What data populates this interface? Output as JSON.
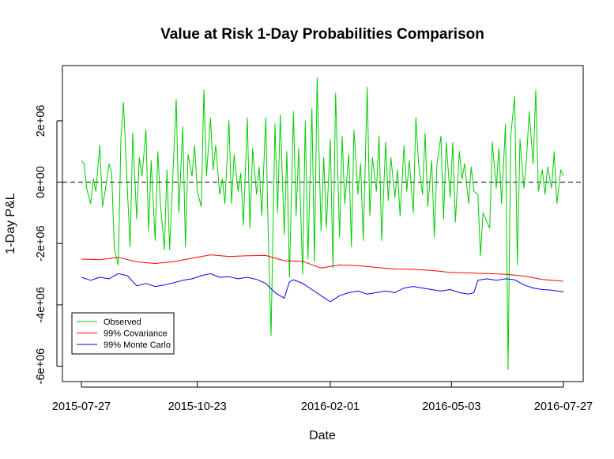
{
  "chart_data": {
    "type": "line",
    "title": "Value at Risk 1-Day Probabilities Comparison",
    "xlabel": "Date",
    "ylabel": "1-Day P&L",
    "xlim": [
      "2015-07-27",
      "2016-07-27"
    ],
    "ylim": [
      -6500000,
      3800000
    ],
    "x_ticks": [
      {
        "value": "2015-07-27",
        "label": "2015-07-27"
      },
      {
        "value": "2015-10-23",
        "label": "2015-10-23"
      },
      {
        "value": "2016-02-01",
        "label": "2016-02-01"
      },
      {
        "value": "2016-05-03",
        "label": "2016-05-03"
      },
      {
        "value": "2016-07-27",
        "label": "2016-07-27"
      }
    ],
    "y_ticks": [
      {
        "value": -6000000,
        "label": "-6e+06"
      },
      {
        "value": -4000000,
        "label": "-4e+06"
      },
      {
        "value": -2000000,
        "label": "-2e+06"
      },
      {
        "value": 0,
        "label": "0e+00"
      },
      {
        "value": 2000000,
        "label": "2e+06"
      }
    ],
    "reference_line": {
      "y": 0,
      "style": "dashed"
    },
    "legend": {
      "position": "bottom-left"
    },
    "grid": false,
    "series": [
      {
        "name": "Observed",
        "color": "#00CD00",
        "points": [
          [
            "2015-07-27",
            700000
          ],
          [
            "2015-07-29",
            600000
          ],
          [
            "2015-07-31",
            -200000
          ],
          [
            "2015-08-03",
            -700000
          ],
          [
            "2015-08-05",
            100000
          ],
          [
            "2015-08-07",
            -300000
          ],
          [
            "2015-08-10",
            1200000
          ],
          [
            "2015-08-12",
            -800000
          ],
          [
            "2015-08-14",
            -300000
          ],
          [
            "2015-08-17",
            600000
          ],
          [
            "2015-08-19",
            300000
          ],
          [
            "2015-08-21",
            -2200000
          ],
          [
            "2015-08-24",
            -2700000
          ],
          [
            "2015-08-26",
            1400000
          ],
          [
            "2015-08-28",
            2600000
          ],
          [
            "2015-08-31",
            -300000
          ],
          [
            "2015-09-02",
            -2100000
          ],
          [
            "2015-09-04",
            1600000
          ],
          [
            "2015-09-07",
            -1200000
          ],
          [
            "2015-09-09",
            800000
          ],
          [
            "2015-09-11",
            200000
          ],
          [
            "2015-09-14",
            1700000
          ],
          [
            "2015-09-16",
            -1600000
          ],
          [
            "2015-09-18",
            700000
          ],
          [
            "2015-09-21",
            -1900000
          ],
          [
            "2015-09-23",
            1000000
          ],
          [
            "2015-09-25",
            -700000
          ],
          [
            "2015-09-28",
            -2200000
          ],
          [
            "2015-09-30",
            400000
          ],
          [
            "2015-10-02",
            -2200000
          ],
          [
            "2015-10-05",
            800000
          ],
          [
            "2015-10-07",
            2700000
          ],
          [
            "2015-10-09",
            -1000000
          ],
          [
            "2015-10-12",
            1800000
          ],
          [
            "2015-10-14",
            -2100000
          ],
          [
            "2015-10-16",
            900000
          ],
          [
            "2015-10-19",
            200000
          ],
          [
            "2015-10-21",
            1200000
          ],
          [
            "2015-10-23",
            -300000
          ],
          [
            "2015-10-26",
            -800000
          ],
          [
            "2015-10-28",
            3000000
          ],
          [
            "2015-10-30",
            200000
          ],
          [
            "2015-11-02",
            2100000
          ],
          [
            "2015-11-04",
            400000
          ],
          [
            "2015-11-06",
            1200000
          ],
          [
            "2015-11-09",
            -400000
          ],
          [
            "2015-11-11",
            100000
          ],
          [
            "2015-11-13",
            -700000
          ],
          [
            "2015-11-16",
            2000000
          ],
          [
            "2015-11-18",
            -700000
          ],
          [
            "2015-11-20",
            900000
          ],
          [
            "2015-11-23",
            -300000
          ],
          [
            "2015-11-25",
            300000
          ],
          [
            "2015-11-27",
            -1400000
          ],
          [
            "2015-11-30",
            2100000
          ],
          [
            "2015-12-02",
            -1500000
          ],
          [
            "2015-12-04",
            1100000
          ],
          [
            "2015-12-07",
            -400000
          ],
          [
            "2015-12-09",
            500000
          ],
          [
            "2015-12-11",
            -1100000
          ],
          [
            "2015-12-14",
            2100000
          ],
          [
            "2015-12-16",
            -2000000
          ],
          [
            "2015-12-18",
            -5000000
          ],
          [
            "2015-12-21",
            1900000
          ],
          [
            "2015-12-23",
            -1000000
          ],
          [
            "2015-12-25",
            2200000
          ],
          [
            "2015-12-28",
            -1700000
          ],
          [
            "2015-12-30",
            1000000
          ],
          [
            "2016-01-01",
            -3100000
          ],
          [
            "2016-01-04",
            2300000
          ],
          [
            "2016-01-06",
            -1100000
          ],
          [
            "2016-01-08",
            1100000
          ],
          [
            "2016-01-11",
            -3000000
          ],
          [
            "2016-01-13",
            2000000
          ],
          [
            "2016-01-15",
            -2500000
          ],
          [
            "2016-01-18",
            2400000
          ],
          [
            "2016-01-20",
            -2600000
          ],
          [
            "2016-01-22",
            3400000
          ],
          [
            "2016-01-25",
            -1600000
          ],
          [
            "2016-01-27",
            800000
          ],
          [
            "2016-01-29",
            -1500000
          ],
          [
            "2016-02-01",
            1400000
          ],
          [
            "2016-02-03",
            -2800000
          ],
          [
            "2016-02-05",
            2900000
          ],
          [
            "2016-02-08",
            -1800000
          ],
          [
            "2016-02-10",
            1500000
          ],
          [
            "2016-02-12",
            -700000
          ],
          [
            "2016-02-15",
            900000
          ],
          [
            "2016-02-17",
            -2100000
          ],
          [
            "2016-02-19",
            1700000
          ],
          [
            "2016-02-22",
            -400000
          ],
          [
            "2016-02-24",
            600000
          ],
          [
            "2016-02-26",
            -1900000
          ],
          [
            "2016-02-29",
            3100000
          ],
          [
            "2016-03-02",
            -1100000
          ],
          [
            "2016-03-04",
            800000
          ],
          [
            "2016-03-07",
            -300000
          ],
          [
            "2016-03-09",
            1500000
          ],
          [
            "2016-03-11",
            -1900000
          ],
          [
            "2016-03-14",
            1300000
          ],
          [
            "2016-03-16",
            -600000
          ],
          [
            "2016-03-18",
            800000
          ],
          [
            "2016-03-21",
            -500000
          ],
          [
            "2016-03-23",
            400000
          ],
          [
            "2016-03-25",
            -1100000
          ],
          [
            "2016-03-28",
            1200000
          ],
          [
            "2016-03-30",
            -300000
          ],
          [
            "2016-04-01",
            700000
          ],
          [
            "2016-04-04",
            -1000000
          ],
          [
            "2016-04-06",
            2100000
          ],
          [
            "2016-04-08",
            600000
          ],
          [
            "2016-04-11",
            -400000
          ],
          [
            "2016-04-13",
            1600000
          ],
          [
            "2016-04-15",
            -800000
          ],
          [
            "2016-04-18",
            700000
          ],
          [
            "2016-04-20",
            -1800000
          ],
          [
            "2016-04-22",
            600000
          ],
          [
            "2016-04-25",
            1500000
          ],
          [
            "2016-04-27",
            -1200000
          ],
          [
            "2016-04-29",
            1300000
          ],
          [
            "2016-05-02",
            -500000
          ],
          [
            "2016-05-04",
            1300000
          ],
          [
            "2016-05-06",
            -1300000
          ],
          [
            "2016-05-09",
            1000000
          ],
          [
            "2016-05-11",
            100000
          ],
          [
            "2016-05-13",
            600000
          ],
          [
            "2016-05-16",
            -700000
          ],
          [
            "2016-05-18",
            500000
          ],
          [
            "2016-05-20",
            -300000
          ],
          [
            "2016-05-23",
            -400000
          ],
          [
            "2016-05-25",
            -2400000
          ],
          [
            "2016-05-27",
            -1000000
          ],
          [
            "2016-05-30",
            -1300000
          ],
          [
            "2016-06-01",
            -1500000
          ],
          [
            "2016-06-03",
            1300000
          ],
          [
            "2016-06-06",
            -200000
          ],
          [
            "2016-06-08",
            1100000
          ],
          [
            "2016-06-10",
            -700000
          ],
          [
            "2016-06-13",
            1900000
          ],
          [
            "2016-06-15",
            -6100000
          ],
          [
            "2016-06-17",
            1500000
          ],
          [
            "2016-06-20",
            2800000
          ],
          [
            "2016-06-22",
            -2700000
          ],
          [
            "2016-06-24",
            1400000
          ],
          [
            "2016-06-27",
            -200000
          ],
          [
            "2016-06-29",
            800000
          ],
          [
            "2016-07-01",
            2300000
          ],
          [
            "2016-07-04",
            600000
          ],
          [
            "2016-07-06",
            3000000
          ],
          [
            "2016-07-08",
            -300000
          ],
          [
            "2016-07-11",
            400000
          ],
          [
            "2016-07-13",
            -400000
          ],
          [
            "2016-07-15",
            500000
          ],
          [
            "2016-07-18",
            -200000
          ],
          [
            "2016-07-20",
            1000000
          ],
          [
            "2016-07-22",
            -700000
          ],
          [
            "2016-07-25",
            400000
          ],
          [
            "2016-07-27",
            200000
          ]
        ]
      },
      {
        "name": "99% Covariance",
        "color": "#FF0000",
        "points": [
          [
            "2015-07-27",
            -2510000
          ],
          [
            "2015-08-10",
            -2530000
          ],
          [
            "2015-08-24",
            -2450000
          ],
          [
            "2015-09-07",
            -2600000
          ],
          [
            "2015-09-21",
            -2650000
          ],
          [
            "2015-10-05",
            -2590000
          ],
          [
            "2015-10-19",
            -2480000
          ],
          [
            "2015-11-02",
            -2370000
          ],
          [
            "2015-11-16",
            -2420000
          ],
          [
            "2015-11-30",
            -2400000
          ],
          [
            "2015-12-14",
            -2390000
          ],
          [
            "2015-12-28",
            -2560000
          ],
          [
            "2016-01-11",
            -2580000
          ],
          [
            "2016-01-25",
            -2800000
          ],
          [
            "2016-02-08",
            -2700000
          ],
          [
            "2016-02-22",
            -2720000
          ],
          [
            "2016-03-07",
            -2780000
          ],
          [
            "2016-03-21",
            -2830000
          ],
          [
            "2016-04-04",
            -2840000
          ],
          [
            "2016-04-18",
            -2880000
          ],
          [
            "2016-05-02",
            -2940000
          ],
          [
            "2016-05-16",
            -2960000
          ],
          [
            "2016-05-30",
            -2980000
          ],
          [
            "2016-06-13",
            -3000000
          ],
          [
            "2016-06-27",
            -3060000
          ],
          [
            "2016-07-11",
            -3170000
          ],
          [
            "2016-07-27",
            -3230000
          ]
        ]
      },
      {
        "name": "99% Monte Carlo",
        "color": "#0000FF",
        "points": [
          [
            "2015-07-27",
            -3100000
          ],
          [
            "2015-08-03",
            -3200000
          ],
          [
            "2015-08-10",
            -3100000
          ],
          [
            "2015-08-17",
            -3150000
          ],
          [
            "2015-08-24",
            -2980000
          ],
          [
            "2015-08-31",
            -3050000
          ],
          [
            "2015-09-07",
            -3380000
          ],
          [
            "2015-09-14",
            -3300000
          ],
          [
            "2015-09-21",
            -3400000
          ],
          [
            "2015-09-28",
            -3350000
          ],
          [
            "2015-10-05",
            -3280000
          ],
          [
            "2015-10-12",
            -3200000
          ],
          [
            "2015-10-19",
            -3150000
          ],
          [
            "2015-10-26",
            -3050000
          ],
          [
            "2015-11-02",
            -2980000
          ],
          [
            "2015-11-09",
            -3100000
          ],
          [
            "2015-11-16",
            -3080000
          ],
          [
            "2015-11-23",
            -3150000
          ],
          [
            "2015-11-30",
            -3100000
          ],
          [
            "2015-12-07",
            -3170000
          ],
          [
            "2015-12-14",
            -3300000
          ],
          [
            "2015-12-21",
            -3600000
          ],
          [
            "2015-12-28",
            -3780000
          ],
          [
            "2016-01-01",
            -3250000
          ],
          [
            "2016-01-04",
            -3180000
          ],
          [
            "2016-01-11",
            -3300000
          ],
          [
            "2016-01-18",
            -3500000
          ],
          [
            "2016-01-25",
            -3700000
          ],
          [
            "2016-02-01",
            -3900000
          ],
          [
            "2016-02-08",
            -3700000
          ],
          [
            "2016-02-15",
            -3600000
          ],
          [
            "2016-02-22",
            -3550000
          ],
          [
            "2016-02-29",
            -3650000
          ],
          [
            "2016-03-07",
            -3600000
          ],
          [
            "2016-03-14",
            -3550000
          ],
          [
            "2016-03-21",
            -3600000
          ],
          [
            "2016-03-28",
            -3450000
          ],
          [
            "2016-04-04",
            -3400000
          ],
          [
            "2016-04-11",
            -3450000
          ],
          [
            "2016-04-18",
            -3500000
          ],
          [
            "2016-04-25",
            -3550000
          ],
          [
            "2016-05-02",
            -3500000
          ],
          [
            "2016-05-09",
            -3600000
          ],
          [
            "2016-05-16",
            -3650000
          ],
          [
            "2016-05-20",
            -3600000
          ],
          [
            "2016-05-23",
            -3200000
          ],
          [
            "2016-05-30",
            -3150000
          ],
          [
            "2016-06-06",
            -3200000
          ],
          [
            "2016-06-13",
            -3150000
          ],
          [
            "2016-06-20",
            -3180000
          ],
          [
            "2016-06-27",
            -3350000
          ],
          [
            "2016-07-04",
            -3450000
          ],
          [
            "2016-07-11",
            -3500000
          ],
          [
            "2016-07-18",
            -3520000
          ],
          [
            "2016-07-27",
            -3580000
          ]
        ]
      }
    ]
  }
}
